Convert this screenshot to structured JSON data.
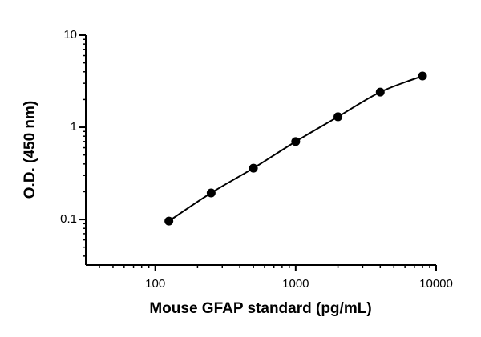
{
  "chart_data": {
    "type": "scatter",
    "x_label": "Mouse GFAP standard (pg/mL)",
    "y_label": "O.D. (450 nm)",
    "x": [
      125,
      250,
      500,
      1000,
      2000,
      4000,
      8000
    ],
    "values": [
      0.096,
      0.194,
      0.36,
      0.7,
      1.3,
      2.41,
      3.6
    ],
    "color": "#000000",
    "x_log": true,
    "y_log": true,
    "xlim": [
      32,
      10000
    ],
    "ylim": [
      0.032,
      10
    ],
    "xticks": [
      100,
      1000,
      10000
    ],
    "yticks": [
      0.1,
      1,
      10
    ],
    "x_minor_ticks": [
      40,
      50,
      60,
      70,
      80,
      90,
      200,
      300,
      400,
      500,
      600,
      700,
      800,
      900,
      2000,
      3000,
      4000,
      5000,
      6000,
      7000,
      8000,
      9000
    ],
    "y_minor_ticks": [
      0.04,
      0.05,
      0.06,
      0.07,
      0.08,
      0.09,
      0.2,
      0.3,
      0.4,
      0.5,
      0.6,
      0.7,
      0.8,
      0.9,
      2,
      3,
      4,
      5,
      6,
      7,
      8,
      9
    ]
  }
}
